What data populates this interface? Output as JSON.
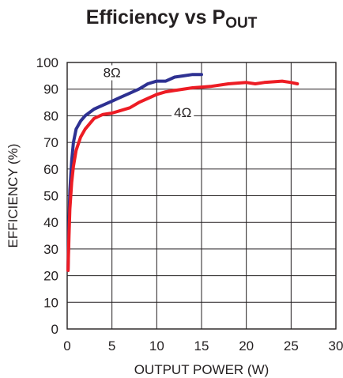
{
  "chart_data": {
    "type": "line",
    "title": "Efficiency vs P",
    "title_subscript": "OUT",
    "xlabel": "OUTPUT POWER (W)",
    "ylabel": "EFFICIENCY (%)",
    "xlim": [
      0,
      30
    ],
    "ylim": [
      0,
      100
    ],
    "xticks": [
      0,
      5,
      10,
      15,
      20,
      25,
      30
    ],
    "yticks": [
      0,
      10,
      20,
      30,
      40,
      50,
      60,
      70,
      80,
      90,
      100
    ],
    "grid": true,
    "series": [
      {
        "name": "8Ω",
        "color": "#2e3192",
        "x": [
          0.1,
          0.2,
          0.3,
          0.5,
          0.7,
          1.0,
          1.5,
          2.0,
          3.0,
          4.0,
          5.0,
          6.0,
          7.0,
          8.0,
          9.0,
          10.0,
          11.0,
          12.0,
          13.0,
          14.0,
          15.0
        ],
        "y": [
          22,
          40,
          52,
          63,
          70,
          75,
          78,
          80,
          82.5,
          84,
          85.5,
          87,
          88.5,
          90,
          92,
          93,
          93,
          94.5,
          95,
          95.5,
          95.5
        ]
      },
      {
        "name": "4Ω",
        "color": "#ed1c24",
        "x": [
          0.1,
          0.2,
          0.3,
          0.5,
          0.7,
          1.0,
          1.5,
          2.0,
          3.0,
          4.0,
          5.0,
          6.0,
          7.0,
          8.0,
          9.0,
          10.0,
          11.0,
          12.0,
          14.0,
          16.0,
          18.0,
          20.0,
          21.0,
          22.0,
          24.0,
          25.0,
          25.7
        ],
        "y": [
          22,
          35,
          45,
          55,
          61,
          67,
          72,
          75,
          79,
          80.5,
          81,
          82,
          83,
          85,
          86.5,
          88,
          89,
          89.5,
          90.5,
          91,
          92,
          92.5,
          92,
          92.5,
          93,
          92.5,
          92
        ]
      }
    ],
    "annotations": [
      {
        "text": "8Ω",
        "series": 0
      },
      {
        "text": "4Ω",
        "series": 1
      }
    ]
  }
}
